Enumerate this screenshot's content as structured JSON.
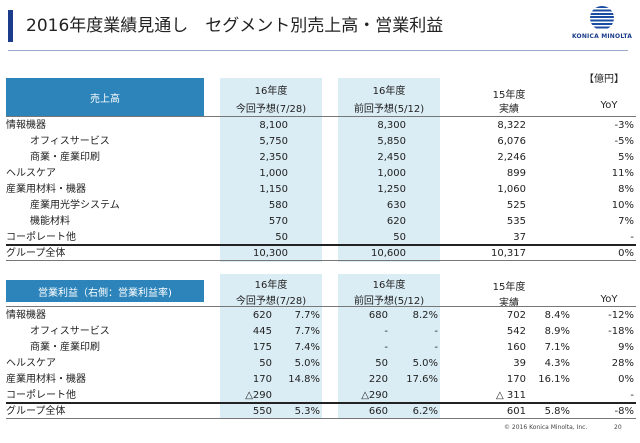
{
  "title": "2016年度業績見通し　セグメント別売上高・営業利益",
  "logo_text": "KONICA MINOLTA",
  "unit_label": "【億円】",
  "sales": {
    "header_label": "売上高",
    "col_fy16_current_top": "16年度",
    "col_fy16_current_bottom": "今回予想(7/28)",
    "col_fy16_previous_top": "16年度",
    "col_fy16_previous_bottom": "前回予想(5/12)",
    "col_fy15_top": "15年度",
    "col_fy15_bottom": "実績",
    "col_yoy": "YoY",
    "rows": [
      {
        "name": "情報機器",
        "cur": "8,100",
        "prev": "8,300",
        "fy15": "8,322",
        "yoy": "-3%"
      },
      {
        "name": "オフィスサービス",
        "cur": "5,750",
        "prev": "5,850",
        "fy15": "6,076",
        "yoy": "-5%"
      },
      {
        "name": "商業・産業印刷",
        "cur": "2,350",
        "prev": "2,450",
        "fy15": "2,246",
        "yoy": "5%"
      },
      {
        "name": "ヘルスケア",
        "cur": "1,000",
        "prev": "1,000",
        "fy15": "899",
        "yoy": "11%"
      },
      {
        "name": "産業用材料・機器",
        "cur": "1,150",
        "prev": "1,250",
        "fy15": "1,060",
        "yoy": "8%"
      },
      {
        "name": "産業用光学システム",
        "cur": "580",
        "prev": "630",
        "fy15": "525",
        "yoy": "10%"
      },
      {
        "name": "機能材料",
        "cur": "570",
        "prev": "620",
        "fy15": "535",
        "yoy": "7%"
      },
      {
        "name": "コーポレート他",
        "cur": "50",
        "prev": "50",
        "fy15": "37",
        "yoy": "-"
      },
      {
        "name": "グループ全体",
        "cur": "10,300",
        "prev": "10,600",
        "fy15": "10,317",
        "yoy": "0%"
      }
    ]
  },
  "op": {
    "header_label": "営業利益（右側：営業利益率)",
    "col_fy16_current_top": "16年度",
    "col_fy16_current_bottom": "今回予想(7/28)",
    "col_fy16_previous_top": "16年度",
    "col_fy16_previous_bottom": "前回予想(5/12)",
    "col_fy15_top": "15年度",
    "col_fy15_bottom": "実績",
    "col_yoy": "YoY",
    "rows": [
      {
        "name": "情報機器",
        "cur": "620",
        "cur_pct": "7.7%",
        "prev": "680",
        "prev_pct": "8.2%",
        "fy15": "702",
        "fy15_pct": "8.4%",
        "yoy": "-12%"
      },
      {
        "name": "オフィスサービス",
        "cur": "445",
        "cur_pct": "7.7%",
        "prev": "-",
        "prev_pct": "-",
        "fy15": "542",
        "fy15_pct": "8.9%",
        "yoy": "-18%"
      },
      {
        "name": "商業・産業印刷",
        "cur": "175",
        "cur_pct": "7.4%",
        "prev": "-",
        "prev_pct": "-",
        "fy15": "160",
        "fy15_pct": "7.1%",
        "yoy": "9%"
      },
      {
        "name": "ヘルスケア",
        "cur": "50",
        "cur_pct": "5.0%",
        "prev": "50",
        "prev_pct": "5.0%",
        "fy15": "39",
        "fy15_pct": "4.3%",
        "yoy": "28%"
      },
      {
        "name": "産業用材料・機器",
        "cur": "170",
        "cur_pct": "14.8%",
        "prev": "220",
        "prev_pct": "17.6%",
        "fy15": "170",
        "fy15_pct": "16.1%",
        "yoy": "0%"
      },
      {
        "name": "コーポレート他",
        "cur": "△290",
        "cur_pct": "",
        "prev": "△290",
        "prev_pct": "",
        "fy15": "△ 311",
        "fy15_pct": "",
        "yoy": "-"
      },
      {
        "name": "グループ全体",
        "cur": "550",
        "cur_pct": "5.3%",
        "prev": "660",
        "prev_pct": "6.2%",
        "fy15": "601",
        "fy15_pct": "5.8%",
        "yoy": "-8%"
      }
    ]
  },
  "footer": {
    "copyright": "© 2016 Konica Minolta, Inc.",
    "page": "20"
  }
}
